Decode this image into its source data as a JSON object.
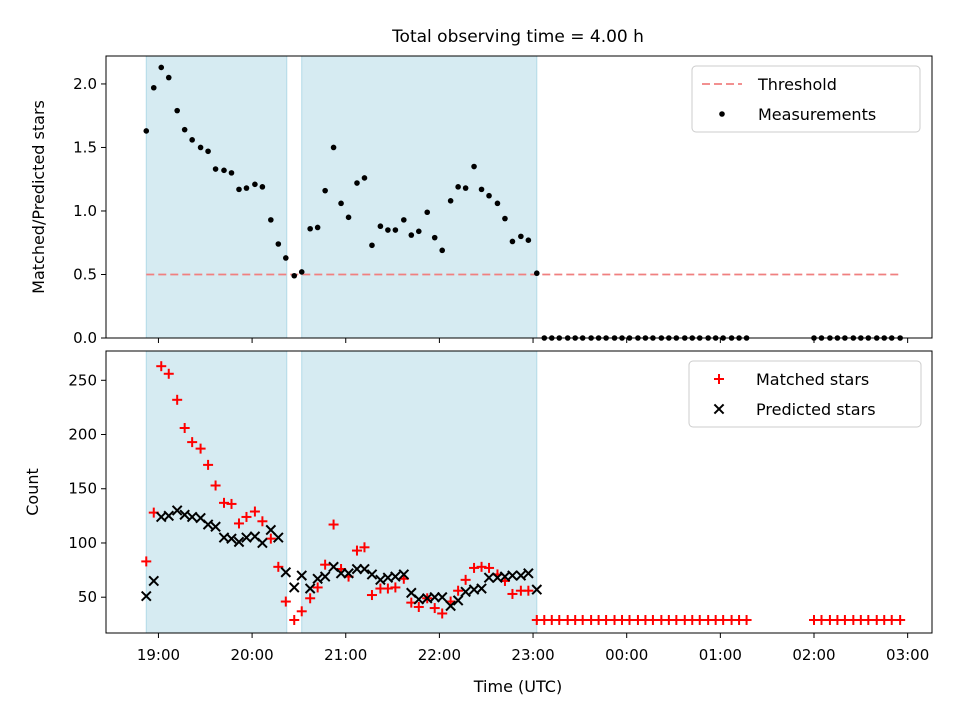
{
  "chart_data": [
    {
      "type": "scatter",
      "title": "Total observing time = 4.00 h",
      "xlabel": "",
      "ylabel": "Matched/Predicted stars",
      "ylim": [
        0,
        2.22
      ],
      "yticks": [
        0.0,
        0.5,
        1.0,
        1.5,
        2.0
      ],
      "ytick_labels": [
        "0.0",
        "0.5",
        "1.0",
        "1.5",
        "2.0"
      ],
      "xlim_hours": [
        18.44,
        27.26
      ],
      "xticks_hours": [
        19,
        20,
        21,
        22,
        23,
        24,
        25,
        26,
        27
      ],
      "xtick_labels": [],
      "shaded_intervals": [
        [
          18.87,
          20.37
        ],
        [
          20.53,
          23.04
        ]
      ],
      "threshold": {
        "name": "Threshold",
        "value": 0.5,
        "x": [
          18.87,
          26.9
        ],
        "color": "#f08080"
      },
      "series": [
        {
          "name": "Measurements",
          "color": "#000000",
          "x": [
            18.87,
            18.95,
            19.03,
            19.11,
            19.2,
            19.28,
            19.36,
            19.45,
            19.53,
            19.61,
            19.7,
            19.78,
            19.86,
            19.94,
            20.03,
            20.11,
            20.2,
            20.28,
            20.36,
            20.45,
            20.53,
            20.62,
            20.7,
            20.78,
            20.87,
            20.95,
            21.03,
            21.12,
            21.2,
            21.28,
            21.37,
            21.45,
            21.53,
            21.62,
            21.7,
            21.78,
            21.87,
            21.95,
            22.03,
            22.12,
            22.2,
            22.28,
            22.37,
            22.45,
            22.53,
            22.62,
            22.7,
            22.78,
            22.87,
            22.95,
            23.04,
            23.12,
            23.2,
            23.28,
            23.37,
            23.45,
            23.53,
            23.62,
            23.7,
            23.78,
            23.87,
            23.95,
            24.03,
            24.12,
            24.2,
            24.28,
            24.37,
            24.45,
            24.53,
            24.62,
            24.7,
            24.78,
            24.87,
            24.95,
            25.03,
            25.12,
            25.2,
            25.28,
            26.0,
            26.08,
            26.17,
            26.25,
            26.33,
            26.42,
            26.5,
            26.58,
            26.67,
            26.75,
            26.83,
            26.92
          ],
          "y": [
            1.63,
            1.97,
            2.13,
            2.05,
            1.79,
            1.64,
            1.56,
            1.5,
            1.47,
            1.33,
            1.32,
            1.3,
            1.17,
            1.18,
            1.21,
            1.19,
            0.93,
            0.74,
            0.63,
            0.49,
            0.52,
            0.86,
            0.87,
            1.16,
            1.5,
            1.06,
            0.95,
            1.22,
            1.26,
            0.73,
            0.88,
            0.85,
            0.85,
            0.93,
            0.81,
            0.84,
            0.99,
            0.79,
            0.69,
            1.08,
            1.19,
            1.18,
            1.35,
            1.17,
            1.12,
            1.06,
            0.94,
            0.76,
            0.8,
            0.77,
            0.51,
            0,
            0,
            0,
            0,
            0,
            0,
            0,
            0,
            0,
            0,
            0,
            0,
            0,
            0,
            0,
            0,
            0,
            0,
            0,
            0,
            0,
            0,
            0,
            0,
            0,
            0,
            0,
            0,
            0,
            0,
            0,
            0,
            0,
            0,
            0,
            0,
            0,
            0,
            0
          ]
        }
      ],
      "legend": {
        "placement": "top-right",
        "entries": [
          "Threshold",
          "Measurements"
        ]
      }
    },
    {
      "type": "scatter",
      "title": "",
      "xlabel": "Time (UTC)",
      "ylabel": "Count",
      "ylim": [
        17,
        277
      ],
      "yticks": [
        50,
        100,
        150,
        200,
        250
      ],
      "ytick_labels": [
        "50",
        "100",
        "150",
        "200",
        "250"
      ],
      "xlim_hours": [
        18.44,
        27.26
      ],
      "xticks_hours": [
        19,
        20,
        21,
        22,
        23,
        24,
        25,
        26,
        27
      ],
      "xtick_labels": [
        "19:00",
        "20:00",
        "21:00",
        "22:00",
        "23:00",
        "00:00",
        "01:00",
        "02:00",
        "03:00"
      ],
      "shaded_intervals": [
        [
          18.87,
          20.37
        ],
        [
          20.53,
          23.04
        ]
      ],
      "series": [
        {
          "name": "Matched stars",
          "marker": "plus",
          "color": "#ff0000",
          "x": [
            18.87,
            18.95,
            19.03,
            19.11,
            19.2,
            19.28,
            19.36,
            19.45,
            19.53,
            19.61,
            19.7,
            19.78,
            19.86,
            19.94,
            20.03,
            20.11,
            20.2,
            20.28,
            20.36,
            20.45,
            20.53,
            20.62,
            20.7,
            20.78,
            20.87,
            20.95,
            21.03,
            21.12,
            21.2,
            21.28,
            21.37,
            21.45,
            21.53,
            21.62,
            21.7,
            21.78,
            21.87,
            21.95,
            22.03,
            22.12,
            22.2,
            22.28,
            22.37,
            22.45,
            22.53,
            22.62,
            22.7,
            22.78,
            22.87,
            22.95,
            23.04,
            23.12,
            23.2,
            23.28,
            23.37,
            23.45,
            23.53,
            23.62,
            23.7,
            23.78,
            23.87,
            23.95,
            24.03,
            24.12,
            24.2,
            24.28,
            24.37,
            24.45,
            24.53,
            24.62,
            24.7,
            24.78,
            24.87,
            24.95,
            25.03,
            25.12,
            25.2,
            25.28,
            26.0,
            26.08,
            26.17,
            26.25,
            26.33,
            26.42,
            26.5,
            26.58,
            26.67,
            26.75,
            26.83,
            26.92
          ],
          "y": [
            83,
            128,
            263,
            256,
            232,
            206,
            193,
            187,
            172,
            153,
            137,
            136,
            118,
            124,
            129,
            120,
            104,
            78,
            46,
            29,
            37,
            49,
            59,
            80,
            117,
            76,
            69,
            93,
            96,
            52,
            58,
            58,
            59,
            67,
            45,
            41,
            49,
            40,
            35,
            46,
            56,
            66,
            77,
            78,
            77,
            71,
            65,
            53,
            56,
            56,
            29,
            29,
            29,
            29,
            29,
            29,
            29,
            29,
            29,
            29,
            29,
            29,
            29,
            29,
            29,
            29,
            29,
            29,
            29,
            29,
            29,
            29,
            29,
            29,
            29,
            29,
            29,
            29,
            29,
            29,
            29,
            29,
            29,
            29,
            29,
            29,
            29,
            29,
            29,
            29
          ]
        },
        {
          "name": "Predicted stars",
          "marker": "x",
          "color": "#000000",
          "x": [
            18.87,
            18.95,
            19.03,
            19.11,
            19.2,
            19.28,
            19.36,
            19.45,
            19.53,
            19.61,
            19.7,
            19.78,
            19.86,
            19.94,
            20.03,
            20.11,
            20.2,
            20.28,
            20.36,
            20.45,
            20.53,
            20.62,
            20.7,
            20.78,
            20.87,
            20.95,
            21.03,
            21.12,
            21.2,
            21.28,
            21.37,
            21.45,
            21.53,
            21.62,
            21.7,
            21.78,
            21.87,
            21.95,
            22.03,
            22.12,
            22.2,
            22.28,
            22.37,
            22.45,
            22.53,
            22.62,
            22.7,
            22.78,
            22.87,
            22.95,
            23.04
          ],
          "y": [
            51,
            65,
            124,
            125,
            130,
            126,
            124,
            123,
            117,
            115,
            105,
            104,
            101,
            105,
            106,
            100,
            112,
            105,
            73,
            59,
            70,
            58,
            67,
            69,
            78,
            72,
            72,
            76,
            76,
            71,
            66,
            68,
            69,
            71,
            54,
            48,
            49,
            50,
            50,
            42,
            47,
            55,
            57,
            58,
            68,
            68,
            69,
            70,
            70,
            72,
            57
          ]
        }
      ],
      "legend": {
        "placement": "top-right",
        "entries": [
          "Matched stars",
          "Predicted stars"
        ]
      }
    }
  ]
}
